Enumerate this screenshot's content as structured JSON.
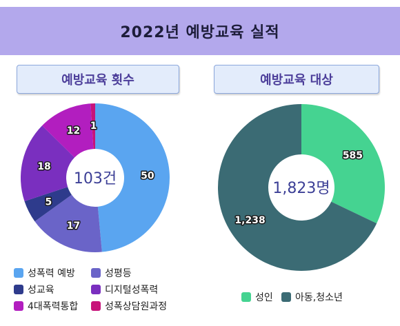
{
  "title": "2022년 예방교육 실적",
  "chart_data": [
    {
      "type": "pie",
      "title": "예방교육 횟수",
      "center_text": "103건",
      "categories": [
        "성폭력 예방",
        "성평등",
        "성교육",
        "디지털성폭력",
        "4대폭력통합",
        "성폭상담원과정"
      ],
      "values": [
        50,
        17,
        5,
        18,
        12,
        1
      ],
      "colors": [
        "#5aa5f0",
        "#6a64c8",
        "#2e3b8c",
        "#7a2fbf",
        "#b21ebf",
        "#c7137a"
      ],
      "legend": "bottom"
    },
    {
      "type": "pie",
      "title": "예방교육 대상",
      "center_text": "1,823명",
      "categories": [
        "성인",
        "아동,청소년"
      ],
      "values": [
        585,
        1238
      ],
      "value_labels": [
        "585",
        "1,238"
      ],
      "colors": [
        "#45d391",
        "#3b6b74"
      ],
      "legend": "bottom"
    }
  ]
}
